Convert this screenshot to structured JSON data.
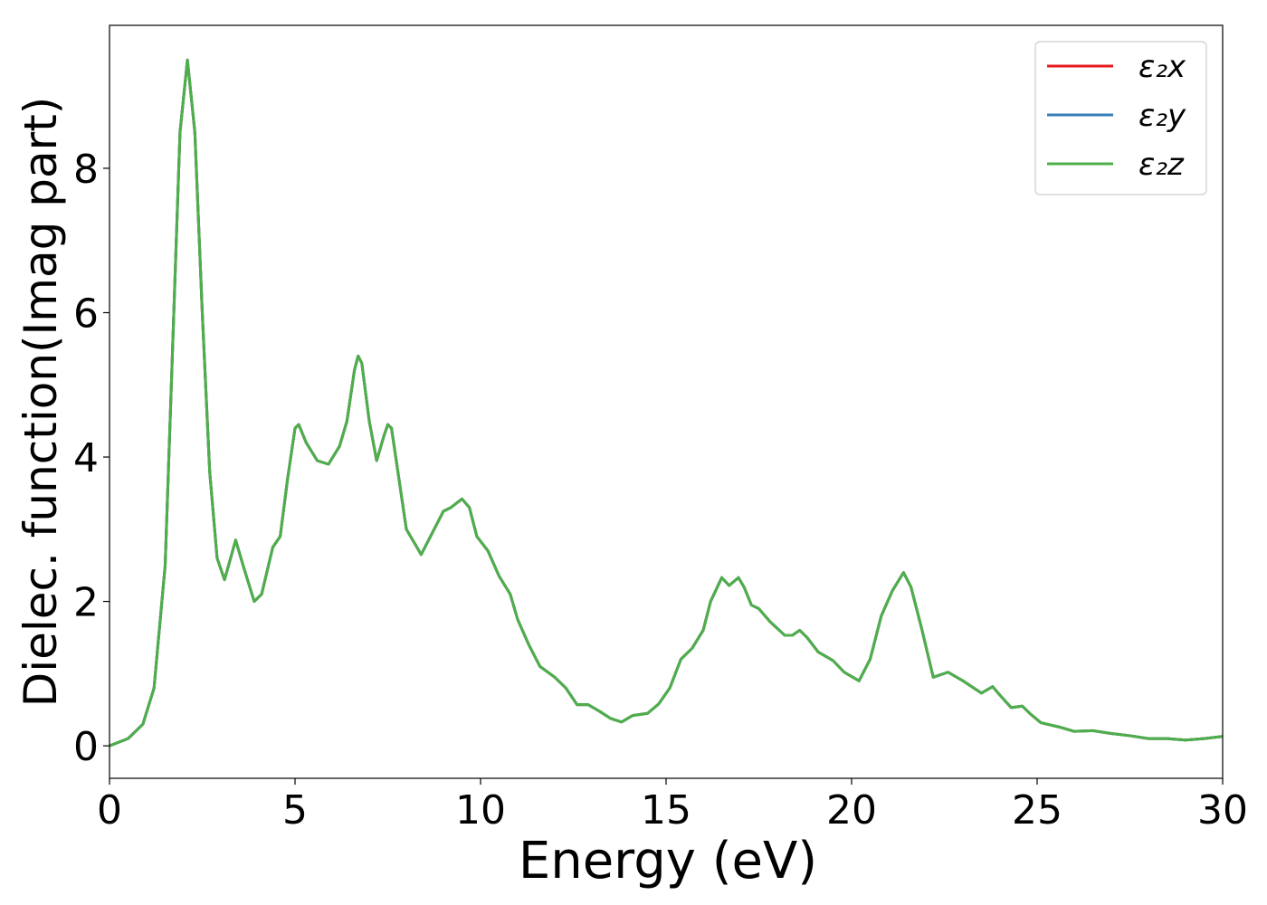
{
  "chart_data": {
    "type": "line",
    "xlabel": "Energy (eV)",
    "ylabel": "Dielec. function(Imag part)",
    "x": [
      0,
      0.5,
      0.9,
      1.2,
      1.5,
      1.7,
      1.9,
      2.1,
      2.3,
      2.5,
      2.7,
      2.9,
      3.1,
      3.4,
      3.6,
      3.9,
      4.1,
      4.4,
      4.6,
      4.8,
      5.0,
      5.1,
      5.3,
      5.6,
      5.9,
      6.2,
      6.4,
      6.6,
      6.7,
      6.8,
      7.0,
      7.2,
      7.4,
      7.5,
      7.6,
      7.8,
      8.0,
      8.4,
      8.7,
      9.0,
      9.2,
      9.5,
      9.7,
      9.9,
      10.2,
      10.5,
      10.8,
      11.0,
      11.3,
      11.6,
      12.0,
      12.3,
      12.6,
      12.9,
      13.2,
      13.5,
      13.8,
      14.1,
      14.5,
      14.8,
      15.1,
      15.4,
      15.7,
      16.0,
      16.2,
      16.5,
      16.7,
      16.95,
      17.1,
      17.3,
      17.5,
      17.8,
      18.2,
      18.4,
      18.6,
      18.8,
      19.1,
      19.5,
      19.8,
      20.2,
      20.5,
      20.8,
      21.1,
      21.4,
      21.6,
      21.9,
      22.2,
      22.6,
      23.0,
      23.5,
      23.8,
      24.0,
      24.3,
      24.6,
      24.8,
      25.1,
      25.6,
      26.0,
      26.5,
      27.0,
      27.5,
      28.0,
      28.5,
      29.0,
      29.5,
      30.0
    ],
    "series": [
      {
        "name": "ε₂x",
        "color": "#e41a1c",
        "values": [
          0.0,
          0.1,
          0.3,
          0.8,
          2.5,
          5.5,
          8.5,
          9.5,
          8.5,
          6.0,
          3.8,
          2.6,
          2.3,
          2.85,
          2.5,
          2.0,
          2.1,
          2.75,
          2.9,
          3.7,
          4.4,
          4.45,
          4.2,
          3.95,
          3.9,
          4.15,
          4.5,
          5.2,
          5.4,
          5.3,
          4.5,
          3.95,
          4.3,
          4.45,
          4.4,
          3.7,
          3.0,
          2.65,
          2.95,
          3.25,
          3.3,
          3.42,
          3.3,
          2.9,
          2.7,
          2.35,
          2.1,
          1.75,
          1.4,
          1.1,
          0.95,
          0.8,
          0.57,
          0.57,
          0.48,
          0.38,
          0.33,
          0.42,
          0.45,
          0.58,
          0.8,
          1.2,
          1.35,
          1.6,
          2.0,
          2.33,
          2.22,
          2.33,
          2.2,
          1.95,
          1.9,
          1.72,
          1.53,
          1.53,
          1.6,
          1.5,
          1.3,
          1.18,
          1.02,
          0.9,
          1.2,
          1.8,
          2.15,
          2.4,
          2.2,
          1.6,
          0.95,
          1.02,
          0.9,
          0.73,
          0.82,
          0.7,
          0.53,
          0.55,
          0.45,
          0.32,
          0.26,
          0.2,
          0.21,
          0.17,
          0.14,
          0.1,
          0.1,
          0.08,
          0.1,
          0.13
        ]
      },
      {
        "name": "ε₂y",
        "color": "#377eb8",
        "values": [
          0.0,
          0.1,
          0.3,
          0.8,
          2.5,
          5.5,
          8.5,
          9.5,
          8.5,
          6.0,
          3.8,
          2.6,
          2.3,
          2.85,
          2.5,
          2.0,
          2.1,
          2.75,
          2.9,
          3.7,
          4.4,
          4.45,
          4.2,
          3.95,
          3.9,
          4.15,
          4.5,
          5.2,
          5.4,
          5.3,
          4.5,
          3.95,
          4.3,
          4.45,
          4.4,
          3.7,
          3.0,
          2.65,
          2.95,
          3.25,
          3.3,
          3.42,
          3.3,
          2.9,
          2.7,
          2.35,
          2.1,
          1.75,
          1.4,
          1.1,
          0.95,
          0.8,
          0.57,
          0.57,
          0.48,
          0.38,
          0.33,
          0.42,
          0.45,
          0.58,
          0.8,
          1.2,
          1.35,
          1.6,
          2.0,
          2.33,
          2.22,
          2.33,
          2.2,
          1.95,
          1.9,
          1.72,
          1.53,
          1.53,
          1.6,
          1.5,
          1.3,
          1.18,
          1.02,
          0.9,
          1.2,
          1.8,
          2.15,
          2.4,
          2.2,
          1.6,
          0.95,
          1.02,
          0.9,
          0.73,
          0.82,
          0.7,
          0.53,
          0.55,
          0.45,
          0.32,
          0.26,
          0.2,
          0.21,
          0.17,
          0.14,
          0.1,
          0.1,
          0.08,
          0.1,
          0.13
        ]
      },
      {
        "name": "ε₂z",
        "color": "#4daf4a",
        "values": [
          0.0,
          0.1,
          0.3,
          0.8,
          2.5,
          5.5,
          8.5,
          9.5,
          8.5,
          6.0,
          3.8,
          2.6,
          2.3,
          2.85,
          2.5,
          2.0,
          2.1,
          2.75,
          2.9,
          3.7,
          4.4,
          4.45,
          4.2,
          3.95,
          3.9,
          4.15,
          4.5,
          5.2,
          5.4,
          5.3,
          4.5,
          3.95,
          4.3,
          4.45,
          4.4,
          3.7,
          3.0,
          2.65,
          2.95,
          3.25,
          3.3,
          3.42,
          3.3,
          2.9,
          2.7,
          2.35,
          2.1,
          1.75,
          1.4,
          1.1,
          0.95,
          0.8,
          0.57,
          0.57,
          0.48,
          0.38,
          0.33,
          0.42,
          0.45,
          0.58,
          0.8,
          1.2,
          1.35,
          1.6,
          2.0,
          2.33,
          2.22,
          2.33,
          2.2,
          1.95,
          1.9,
          1.72,
          1.53,
          1.53,
          1.6,
          1.5,
          1.3,
          1.18,
          1.02,
          0.9,
          1.2,
          1.8,
          2.15,
          2.4,
          2.2,
          1.6,
          0.95,
          1.02,
          0.9,
          0.73,
          0.82,
          0.7,
          0.53,
          0.55,
          0.45,
          0.32,
          0.26,
          0.2,
          0.21,
          0.17,
          0.14,
          0.1,
          0.1,
          0.08,
          0.1,
          0.13
        ]
      }
    ],
    "xlim": [
      0,
      30
    ],
    "xticks": [
      0,
      5,
      10,
      15,
      20,
      25,
      30
    ],
    "ylim": [
      -0.45,
      9.98
    ],
    "yticks": [
      0,
      2,
      4,
      6,
      8
    ],
    "grid": false,
    "legend": "upper right"
  }
}
